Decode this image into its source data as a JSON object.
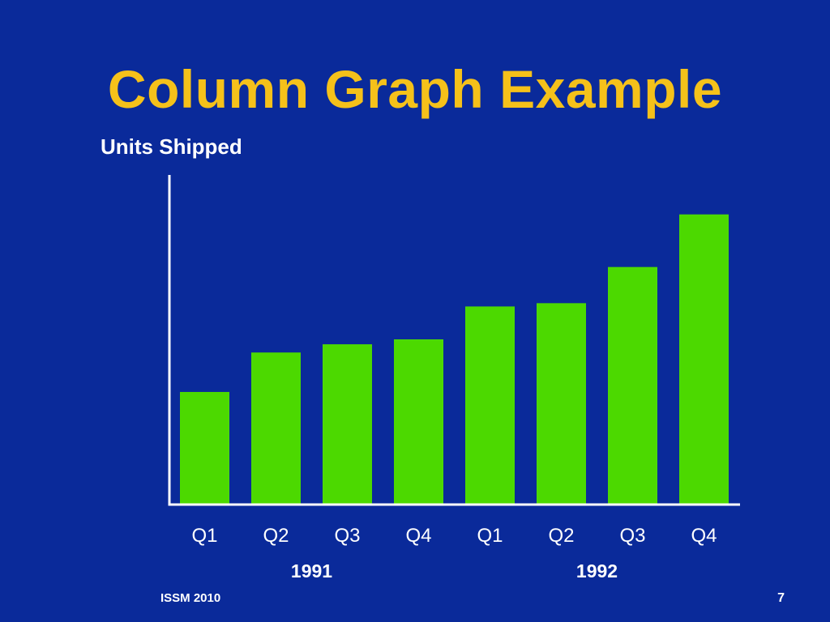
{
  "slide": {
    "footer_left": "ISSM 2010",
    "page_number": "7"
  },
  "colors": {
    "background": "#0a2a9a",
    "title": "#f5c11a",
    "bar": "#4cd900",
    "axis": "#ffffff",
    "text": "#ffffff"
  },
  "chart_data": {
    "type": "bar",
    "title": "Column Graph Example",
    "ylabel": "Units Shipped",
    "xlabel": "",
    "categories": [
      "Q1",
      "Q2",
      "Q3",
      "Q4",
      "Q1",
      "Q2",
      "Q3",
      "Q4"
    ],
    "groups": [
      {
        "label": "1991",
        "categories": [
          0,
          1,
          2,
          3
        ]
      },
      {
        "label": "1992",
        "categories": [
          4,
          5,
          6,
          7
        ]
      }
    ],
    "values": [
      34,
      46,
      48.5,
      50,
      60,
      61,
      72,
      88
    ],
    "ylim": [
      0,
      100
    ],
    "grid": false,
    "legend": "none"
  }
}
